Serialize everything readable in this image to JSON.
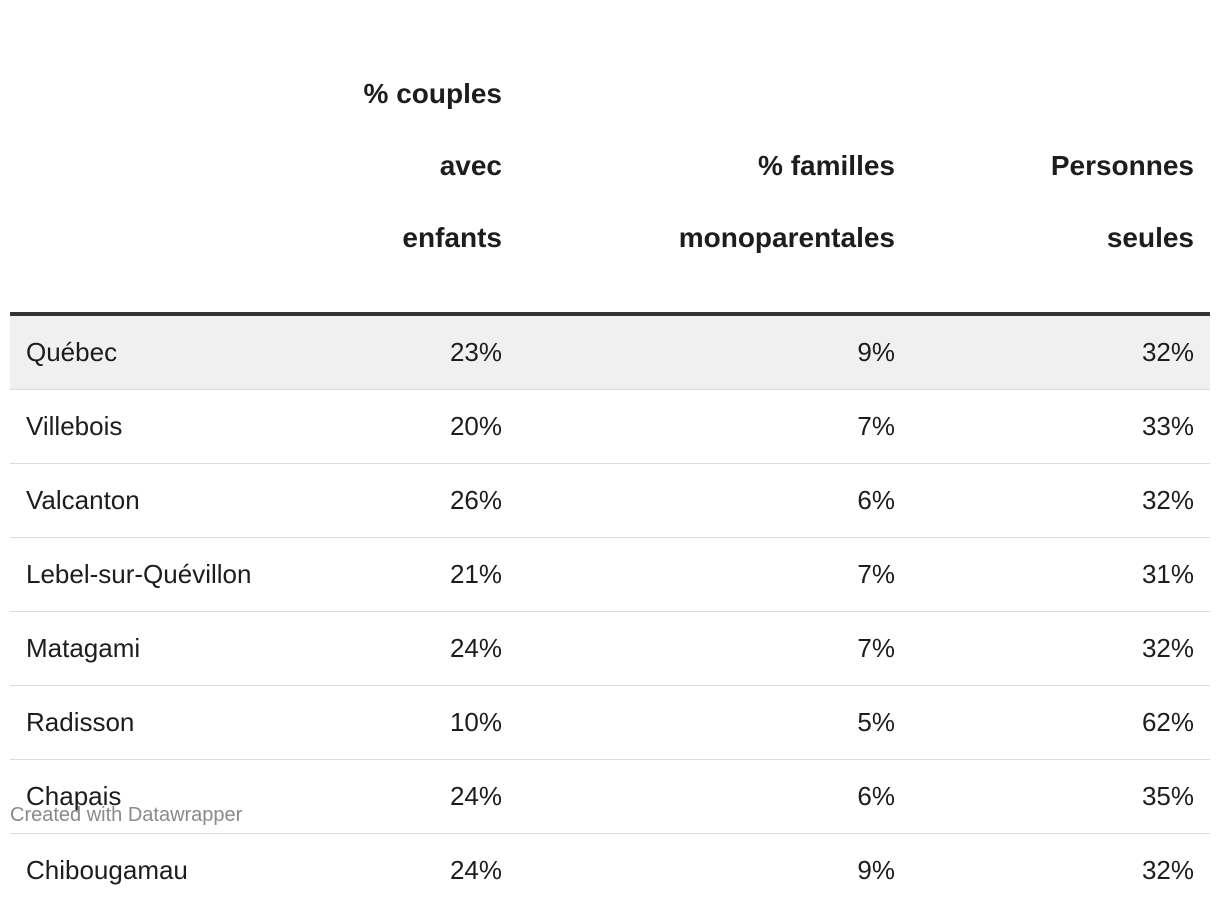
{
  "chart_data": {
    "type": "table",
    "columns": [
      "",
      "% couples avec enfants",
      "% familles monoparentales",
      "Personnes seules"
    ],
    "header_lines": [
      [],
      [
        "% couples",
        "avec",
        "enfants"
      ],
      [
        "% familles",
        "monoparentales"
      ],
      [
        "Personnes",
        "seules"
      ]
    ],
    "rows": [
      {
        "name": "Québec",
        "couples": "23%",
        "monoparentales": "9%",
        "seules": "32%",
        "highlight": true
      },
      {
        "name": "Villebois",
        "couples": "20%",
        "monoparentales": "7%",
        "seules": "33%"
      },
      {
        "name": "Valcanton",
        "couples": "26%",
        "monoparentales": "6%",
        "seules": "32%"
      },
      {
        "name": "Lebel-sur-Quévillon",
        "couples": "21%",
        "monoparentales": "7%",
        "seules": "31%"
      },
      {
        "name": "Matagami",
        "couples": "24%",
        "monoparentales": "7%",
        "seules": "32%"
      },
      {
        "name": "Radisson",
        "couples": "10%",
        "monoparentales": "5%",
        "seules": "62%"
      },
      {
        "name": "Chapais",
        "couples": "24%",
        "monoparentales": "6%",
        "seules": "35%"
      },
      {
        "name": "Chibougamau",
        "couples": "24%",
        "monoparentales": "9%",
        "seules": "32%"
      }
    ],
    "colors": {
      "text": "#1d1d1d",
      "header_rule": "#333333",
      "row_divider": "#dcdcdc",
      "highlight_row": "#f0f0f0",
      "credit": "#8a8a8a"
    }
  },
  "footer": {
    "credit": "Created with Datawrapper"
  }
}
